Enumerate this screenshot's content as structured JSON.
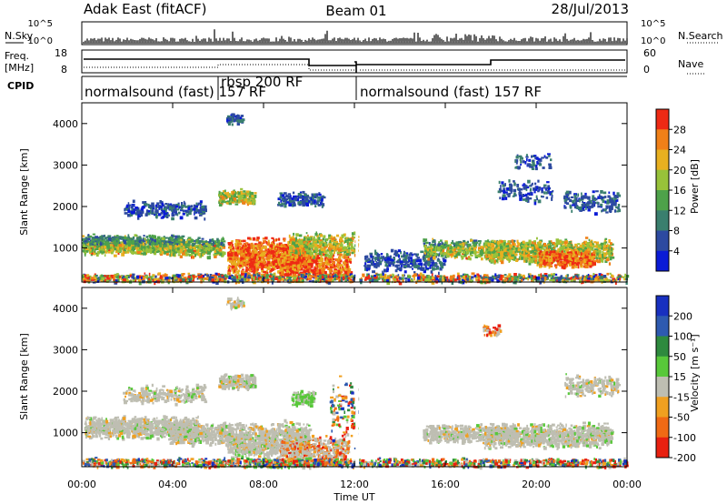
{
  "header": {
    "title": "Adak East (fitACF)",
    "beam": "Beam 01",
    "date": "28/Jul/2013"
  },
  "noise_panel": {
    "left_label": "N.Sky",
    "right_label": "N.Search",
    "ticks": [
      "10^5",
      "10^0"
    ]
  },
  "freq_panel": {
    "left_label_1": "Freq.",
    "left_label_2": "[MHz]",
    "left_ticks": [
      "18",
      "8"
    ],
    "right_label": "Nave",
    "right_ticks": [
      "60",
      "0"
    ]
  },
  "cpid": {
    "label": "CPID",
    "segments": [
      {
        "name": "normalsound (fast) 157 RF",
        "start_hour": 0,
        "end_hour": 6
      },
      {
        "name": "rbsp 200 RF",
        "start_hour": 6,
        "end_hour": 12
      },
      {
        "name": "normalsound (fast) 157 RF",
        "start_hour": 12,
        "end_hour": 24
      }
    ]
  },
  "chart_data": [
    {
      "type": "heatmap",
      "name": "Power",
      "ylabel": "Slant Range [km]",
      "xlim_hours": [
        0,
        24
      ],
      "ylim_km": [
        180,
        4500
      ],
      "yticks": [
        1000,
        2000,
        3000,
        4000
      ],
      "colorbar": {
        "label": "Power [dB]",
        "ticks": [
          "4",
          "8",
          "12",
          "16",
          "20",
          "24",
          "28"
        ],
        "colors": [
          "#0a1bd6",
          "#2d4aa0",
          "#3a7f6e",
          "#4ea24a",
          "#98c23a",
          "#e8b020",
          "#f08018",
          "#ee2a14"
        ]
      }
    },
    {
      "type": "heatmap",
      "name": "Velocity",
      "ylabel": "Slant Range [km]",
      "xlabel": "Time UT",
      "xlim_hours": [
        0,
        24
      ],
      "ylim_km": [
        180,
        4500
      ],
      "yticks": [
        1000,
        2000,
        3000,
        4000
      ],
      "xticks": [
        "00:00",
        "04:00",
        "08:00",
        "12:00",
        "16:00",
        "20:00",
        "00:00"
      ],
      "colorbar": {
        "label": "Velocity [m s⁻¹]",
        "ticks": [
          "200",
          "100",
          "50",
          "15",
          "-15",
          "-50",
          "-100",
          "-200"
        ],
        "colors": [
          "#1830c0",
          "#2e5ab0",
          "#2e8a3e",
          "#58c83a",
          "#bebeb2",
          "#f0a020",
          "#f06a14",
          "#e82010"
        ]
      }
    }
  ]
}
